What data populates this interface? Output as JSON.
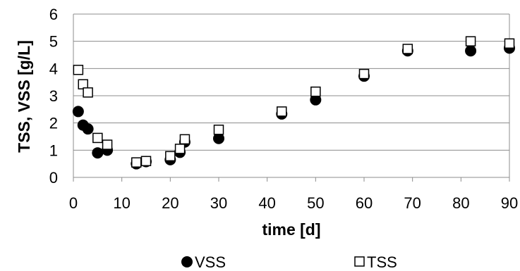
{
  "chart_data": {
    "type": "scatter",
    "title": "",
    "xlabel": "time [d]",
    "ylabel": "TSS, VSS [g/L]",
    "xlim": [
      0,
      90
    ],
    "ylim": [
      0,
      6
    ],
    "xticks": [
      "0",
      "10",
      "20",
      "30",
      "40",
      "50",
      "60",
      "70",
      "80",
      "90"
    ],
    "yticks": [
      "0",
      "1",
      "2",
      "3",
      "4",
      "5",
      "6"
    ],
    "grid": "horizontal",
    "legend": "bottom",
    "series": [
      {
        "name": "VSS",
        "marker": "filled-circle",
        "color": "#000000",
        "points": [
          [
            1,
            2.42
          ],
          [
            2,
            1.92
          ],
          [
            3,
            1.78
          ],
          [
            5,
            0.9
          ],
          [
            7,
            1.0
          ],
          [
            13,
            0.5
          ],
          [
            15,
            0.58
          ],
          [
            20,
            0.65
          ],
          [
            22,
            0.92
          ],
          [
            23,
            1.3
          ],
          [
            30,
            1.43
          ],
          [
            43,
            2.33
          ],
          [
            50,
            2.85
          ],
          [
            60,
            3.72
          ],
          [
            69,
            4.65
          ],
          [
            82,
            4.65
          ],
          [
            90,
            4.75
          ]
        ]
      },
      {
        "name": "TSS",
        "marker": "open-square",
        "color": "#000000",
        "points": [
          [
            1,
            3.95
          ],
          [
            2,
            3.42
          ],
          [
            3,
            3.12
          ],
          [
            5,
            1.45
          ],
          [
            7,
            1.2
          ],
          [
            13,
            0.55
          ],
          [
            15,
            0.6
          ],
          [
            20,
            0.78
          ],
          [
            22,
            1.05
          ],
          [
            23,
            1.4
          ],
          [
            30,
            1.75
          ],
          [
            43,
            2.42
          ],
          [
            50,
            3.15
          ],
          [
            60,
            3.8
          ],
          [
            69,
            4.72
          ],
          [
            82,
            5.0
          ],
          [
            90,
            4.92
          ]
        ]
      }
    ]
  }
}
